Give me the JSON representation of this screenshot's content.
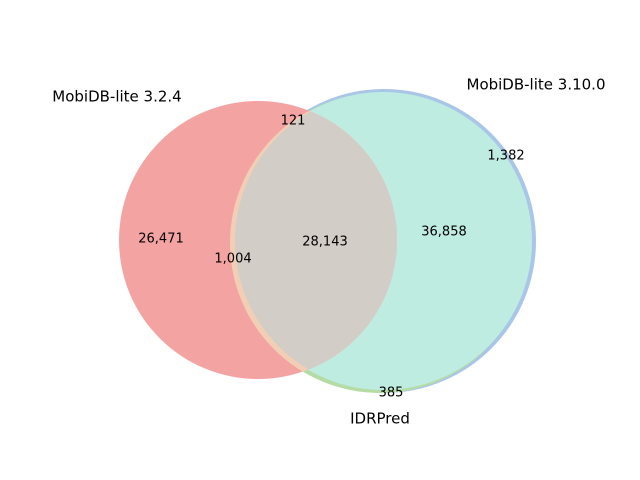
{
  "chart_data": {
    "type": "venn",
    "sets": [
      {
        "name": "MobiDB-lite 3.2.4",
        "color": "#f4a3a3"
      },
      {
        "name": "MobiDB-lite 3.10.0",
        "color": "#a9c6e8"
      },
      {
        "name": "IDRPred",
        "color": "#b4dca4"
      }
    ],
    "values": [
      26471,
      1382,
      121,
      385,
      1004,
      36858,
      28143
    ],
    "value_labels": [
      "26,471",
      "1,382",
      "121",
      "385",
      "1,004",
      "36,858",
      "28,143"
    ]
  }
}
